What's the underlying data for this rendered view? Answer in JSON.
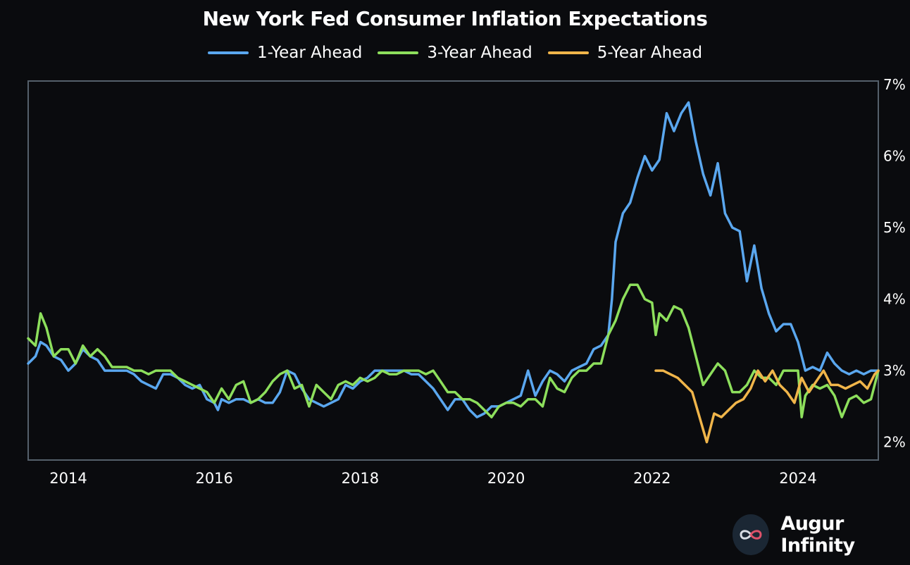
{
  "chart_data": {
    "type": "line",
    "title": "New York Fed Consumer Inflation Expectations",
    "xlabel": "",
    "ylabel": "",
    "x_ticks": [
      "2014",
      "2016",
      "2018",
      "2020",
      "2022",
      "2024"
    ],
    "y_ticks": [
      "2%",
      "3%",
      "4%",
      "5%",
      "6%",
      "7%"
    ],
    "xlim": [
      2013.45,
      2025.1
    ],
    "ylim": [
      1.75,
      7.05
    ],
    "y_axis_position": "right",
    "grid": false,
    "legend_position": "top-center",
    "series": [
      {
        "name": "1-Year Ahead",
        "color": "#5aa7ef",
        "x": [
          2013.45,
          2013.55,
          2013.62,
          2013.7,
          2013.8,
          2013.9,
          2014.0,
          2014.1,
          2014.2,
          2014.3,
          2014.4,
          2014.5,
          2014.6,
          2014.7,
          2014.8,
          2014.9,
          2015.0,
          2015.1,
          2015.2,
          2015.3,
          2015.4,
          2015.5,
          2015.6,
          2015.7,
          2015.8,
          2015.9,
          2016.0,
          2016.05,
          2016.1,
          2016.2,
          2016.3,
          2016.4,
          2016.5,
          2016.6,
          2016.7,
          2016.8,
          2016.9,
          2017.0,
          2017.1,
          2017.2,
          2017.3,
          2017.4,
          2017.5,
          2017.6,
          2017.7,
          2017.8,
          2017.9,
          2018.0,
          2018.1,
          2018.2,
          2018.3,
          2018.4,
          2018.5,
          2018.6,
          2018.7,
          2018.8,
          2018.9,
          2019.0,
          2019.1,
          2019.2,
          2019.3,
          2019.4,
          2019.5,
          2019.6,
          2019.7,
          2019.8,
          2019.9,
          2020.0,
          2020.1,
          2020.2,
          2020.3,
          2020.4,
          2020.45,
          2020.5,
          2020.6,
          2020.7,
          2020.8,
          2020.9,
          2021.0,
          2021.1,
          2021.2,
          2021.3,
          2021.4,
          2021.45,
          2021.5,
          2021.6,
          2021.7,
          2021.8,
          2021.9,
          2022.0,
          2022.1,
          2022.2,
          2022.3,
          2022.4,
          2022.5,
          2022.6,
          2022.7,
          2022.8,
          2022.9,
          2023.0,
          2023.1,
          2023.2,
          2023.3,
          2023.4,
          2023.5,
          2023.6,
          2023.7,
          2023.8,
          2023.9,
          2024.0,
          2024.1,
          2024.2,
          2024.3,
          2024.4,
          2024.5,
          2024.6,
          2024.7,
          2024.8,
          2024.9,
          2025.0,
          2025.1
        ],
        "values": [
          3.1,
          3.2,
          3.4,
          3.35,
          3.2,
          3.15,
          3.0,
          3.1,
          3.3,
          3.2,
          3.15,
          3.0,
          3.0,
          3.0,
          3.0,
          2.95,
          2.85,
          2.8,
          2.75,
          2.95,
          2.95,
          2.9,
          2.8,
          2.75,
          2.8,
          2.6,
          2.55,
          2.45,
          2.6,
          2.55,
          2.6,
          2.6,
          2.55,
          2.6,
          2.55,
          2.55,
          2.7,
          3.0,
          2.95,
          2.75,
          2.6,
          2.55,
          2.5,
          2.55,
          2.6,
          2.8,
          2.75,
          2.85,
          2.9,
          3.0,
          3.0,
          3.0,
          3.0,
          3.0,
          2.95,
          2.95,
          2.85,
          2.75,
          2.6,
          2.45,
          2.6,
          2.6,
          2.45,
          2.35,
          2.4,
          2.5,
          2.5,
          2.55,
          2.6,
          2.65,
          3.0,
          2.65,
          2.75,
          2.85,
          3.0,
          2.95,
          2.85,
          3.0,
          3.05,
          3.1,
          3.3,
          3.35,
          3.5,
          4.0,
          4.8,
          5.2,
          5.35,
          5.7,
          6.0,
          5.8,
          5.95,
          6.6,
          6.35,
          6.6,
          6.75,
          6.2,
          5.75,
          5.45,
          5.9,
          5.2,
          5.0,
          4.95,
          4.25,
          4.75,
          4.15,
          3.8,
          3.55,
          3.65,
          3.65,
          3.4,
          3.0,
          3.05,
          3.0,
          3.25,
          3.1,
          3.0,
          2.95,
          3.0,
          2.95,
          3.0,
          3.0
        ]
      },
      {
        "name": "3-Year Ahead",
        "color": "#8ddf5c",
        "x": [
          2013.45,
          2013.55,
          2013.62,
          2013.7,
          2013.8,
          2013.9,
          2014.0,
          2014.1,
          2014.2,
          2014.3,
          2014.4,
          2014.5,
          2014.6,
          2014.7,
          2014.8,
          2014.9,
          2015.0,
          2015.1,
          2015.2,
          2015.3,
          2015.4,
          2015.5,
          2015.6,
          2015.7,
          2015.8,
          2015.9,
          2016.0,
          2016.1,
          2016.2,
          2016.3,
          2016.4,
          2016.5,
          2016.6,
          2016.7,
          2016.8,
          2016.9,
          2017.0,
          2017.1,
          2017.2,
          2017.3,
          2017.4,
          2017.5,
          2017.6,
          2017.7,
          2017.8,
          2017.9,
          2018.0,
          2018.1,
          2018.2,
          2018.3,
          2018.4,
          2018.5,
          2018.6,
          2018.7,
          2018.8,
          2018.9,
          2019.0,
          2019.1,
          2019.2,
          2019.3,
          2019.4,
          2019.5,
          2019.6,
          2019.7,
          2019.8,
          2019.9,
          2020.0,
          2020.1,
          2020.2,
          2020.3,
          2020.4,
          2020.5,
          2020.6,
          2020.7,
          2020.8,
          2020.9,
          2021.0,
          2021.1,
          2021.2,
          2021.3,
          2021.4,
          2021.5,
          2021.6,
          2021.7,
          2021.8,
          2021.9,
          2022.0,
          2022.05,
          2022.1,
          2022.2,
          2022.3,
          2022.4,
          2022.5,
          2022.6,
          2022.7,
          2022.8,
          2022.9,
          2023.0,
          2023.1,
          2023.2,
          2023.3,
          2023.4,
          2023.5,
          2023.6,
          2023.7,
          2023.8,
          2023.9,
          2024.0,
          2024.05,
          2024.1,
          2024.2,
          2024.3,
          2024.4,
          2024.5,
          2024.6,
          2024.7,
          2024.8,
          2024.9,
          2025.0,
          2025.1
        ],
        "values": [
          3.45,
          3.35,
          3.8,
          3.6,
          3.2,
          3.3,
          3.3,
          3.1,
          3.35,
          3.2,
          3.3,
          3.2,
          3.05,
          3.05,
          3.05,
          3.0,
          3.0,
          2.95,
          3.0,
          3.0,
          3.0,
          2.9,
          2.85,
          2.8,
          2.75,
          2.7,
          2.55,
          2.75,
          2.6,
          2.8,
          2.85,
          2.55,
          2.6,
          2.7,
          2.85,
          2.95,
          3.0,
          2.75,
          2.8,
          2.5,
          2.8,
          2.7,
          2.6,
          2.8,
          2.85,
          2.8,
          2.9,
          2.85,
          2.9,
          3.0,
          2.95,
          2.95,
          3.0,
          3.0,
          3.0,
          2.95,
          3.0,
          2.85,
          2.7,
          2.7,
          2.6,
          2.6,
          2.55,
          2.45,
          2.35,
          2.5,
          2.55,
          2.55,
          2.5,
          2.6,
          2.6,
          2.5,
          2.9,
          2.75,
          2.7,
          2.9,
          3.0,
          3.0,
          3.1,
          3.1,
          3.5,
          3.7,
          4.0,
          4.2,
          4.2,
          4.0,
          3.95,
          3.5,
          3.8,
          3.7,
          3.9,
          3.85,
          3.6,
          3.2,
          2.8,
          2.95,
          3.1,
          3.0,
          2.7,
          2.7,
          2.8,
          3.0,
          2.9,
          2.9,
          2.8,
          3.0,
          3.0,
          3.0,
          2.35,
          2.65,
          2.8,
          2.75,
          2.8,
          2.65,
          2.35,
          2.6,
          2.65,
          2.55,
          2.6,
          3.0
        ]
      },
      {
        "name": "5-Year Ahead",
        "color": "#f0b54a",
        "x": [
          2022.05,
          2022.15,
          2022.25,
          2022.35,
          2022.45,
          2022.55,
          2022.65,
          2022.75,
          2022.85,
          2022.95,
          2023.05,
          2023.15,
          2023.25,
          2023.35,
          2023.45,
          2023.55,
          2023.65,
          2023.75,
          2023.85,
          2023.95,
          2024.05,
          2024.15,
          2024.25,
          2024.35,
          2024.45,
          2024.55,
          2024.65,
          2024.75,
          2024.85,
          2024.95,
          2025.05,
          2025.1
        ],
        "values": [
          3.0,
          3.0,
          2.95,
          2.9,
          2.8,
          2.7,
          2.35,
          2.0,
          2.4,
          2.35,
          2.45,
          2.55,
          2.6,
          2.75,
          3.0,
          2.85,
          3.0,
          2.8,
          2.7,
          2.55,
          2.9,
          2.7,
          2.85,
          3.0,
          2.8,
          2.8,
          2.75,
          2.8,
          2.85,
          2.75,
          2.95,
          3.0
        ]
      }
    ]
  },
  "brand": {
    "name": "Augur Infinity",
    "logo_icon": "infinity-icon"
  },
  "colors": {
    "background": "#0a0b0e",
    "axis": "#55606b",
    "text": "#ffffff"
  }
}
